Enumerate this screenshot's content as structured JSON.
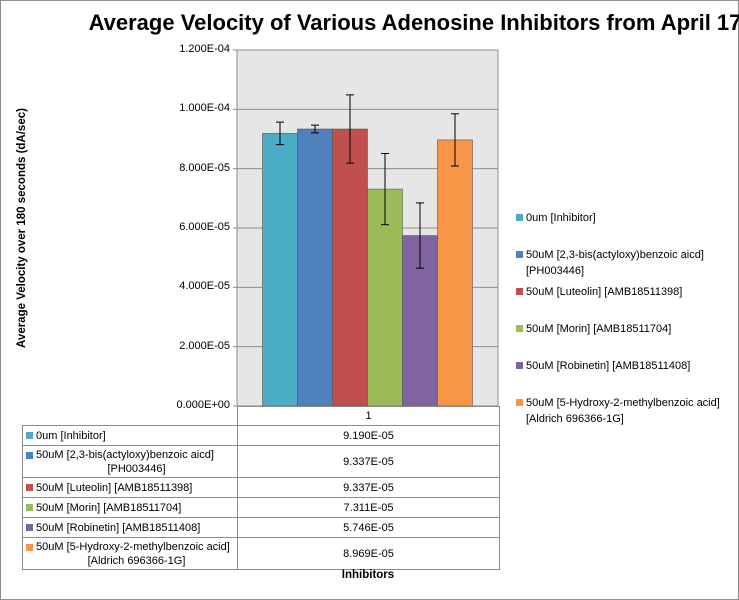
{
  "chart_data": {
    "type": "bar",
    "title": "Average Velocity of Various Adenosine Inhibitors from April 17",
    "xlabel": "Inhibitors",
    "ylabel": "Average Velocity over 180 seconds (dA/sec)",
    "categories": [
      "1"
    ],
    "ylim": [
      0,
      0.00012
    ],
    "yticks": [
      "0.000E+00",
      "2.000E-05",
      "4.000E-05",
      "6.000E-05",
      "8.000E-05",
      "1.000E-04",
      "1.200E-04"
    ],
    "ytick_values": [
      0,
      2e-05,
      4e-05,
      6e-05,
      8e-05,
      0.0001,
      0.00012
    ],
    "grid": true,
    "legend_position": "right",
    "series": [
      {
        "name": "0um [Inhibitor]",
        "table_name": [
          "0um [Inhibitor]"
        ],
        "values": [
          9.19e-05
        ],
        "value_label": "9.190E-05",
        "error": 3.8e-06,
        "color": "#4BACC6"
      },
      {
        "name": "50uM [2,3-bis(actyloxy)benzoic aicd] [PH003446]",
        "table_name": [
          "50uM [2,3-bis(actyloxy)benzoic aicd]",
          "[PH003446]"
        ],
        "values": [
          9.337e-05
        ],
        "value_label": "9.337E-05",
        "error": 1.3e-06,
        "color": "#4F81BD"
      },
      {
        "name": "50uM [Luteolin] [AMB18511398]",
        "table_name": [
          "50uM [Luteolin] [AMB18511398]"
        ],
        "values": [
          9.337e-05
        ],
        "value_label": "9.337E-05",
        "error": 1.15e-05,
        "color": "#C0504D"
      },
      {
        "name": "50uM [Morin] [AMB18511704]",
        "table_name": [
          "50uM [Morin] [AMB18511704]"
        ],
        "values": [
          7.311e-05
        ],
        "value_label": "7.311E-05",
        "error": 1.2e-05,
        "color": "#9BBB59"
      },
      {
        "name": "50uM [Robinetin] [AMB18511408]",
        "table_name": [
          "50uM [Robinetin] [AMB18511408]"
        ],
        "values": [
          5.746e-05
        ],
        "value_label": "5.746E-05",
        "error": 1.1e-05,
        "color": "#8064A2"
      },
      {
        "name": "50uM [5-Hydroxy-2-methylbenzoic acid] [Aldrich 696366-1G]",
        "table_name": [
          "50uM [5-Hydroxy-2-methylbenzoic acid]",
          "[Aldrich 696366-1G]"
        ],
        "values": [
          8.969e-05
        ],
        "value_label": "8.969E-05",
        "error": 8.8e-06,
        "color": "#F79646"
      }
    ],
    "legend_lines": [
      [
        "0um [Inhibitor]"
      ],
      [
        "50uM [2,3-bis(actyloxy)benzoic aicd]",
        "[PH003446]"
      ],
      [
        "50uM [Luteolin] [AMB18511398]"
      ],
      [
        "50uM [Morin] [AMB18511704]"
      ],
      [
        "50uM [Robinetin] [AMB18511408]"
      ],
      [
        "50uM [5-Hydroxy-2-methylbenzoic acid]",
        "[Aldrich 696366-1G]"
      ]
    ]
  }
}
